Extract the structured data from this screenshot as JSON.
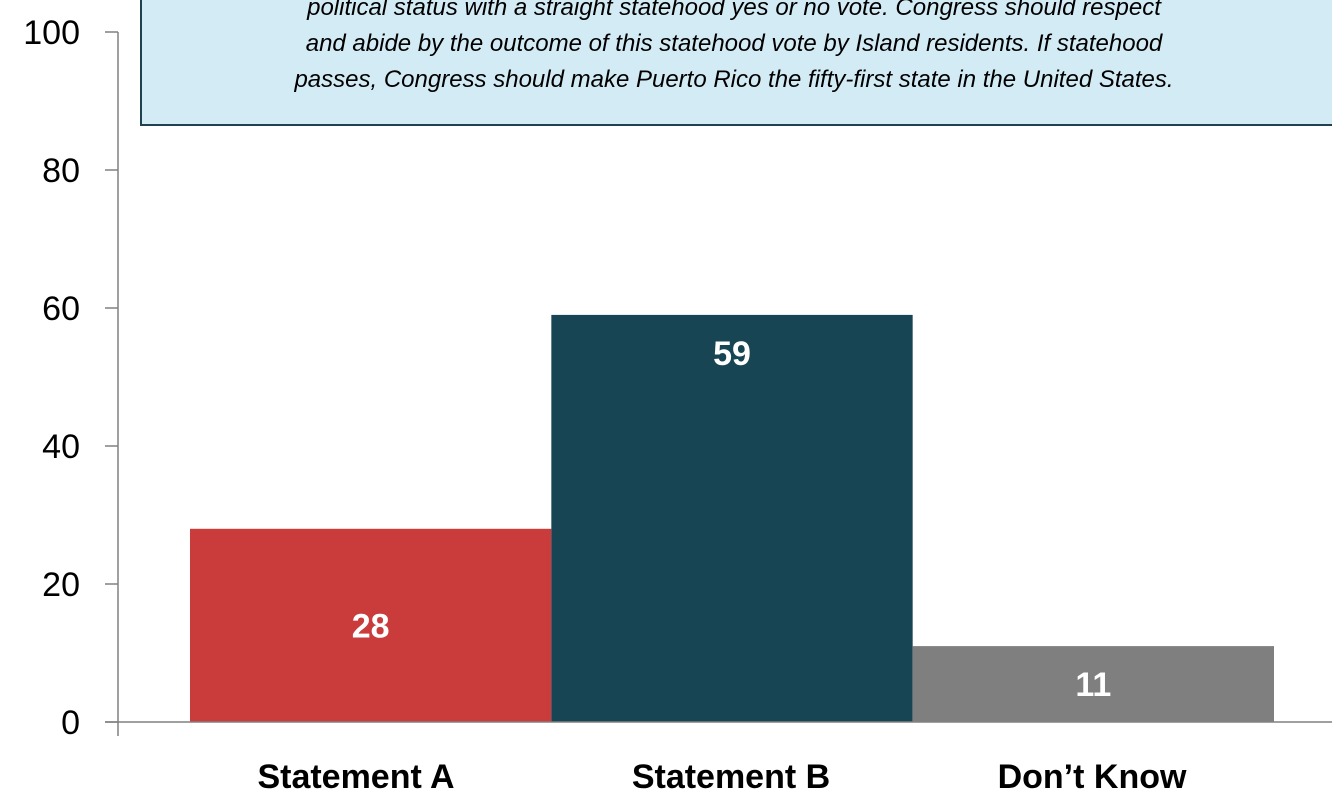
{
  "chart_data": {
    "type": "bar",
    "title": "",
    "xlabel": "",
    "ylabel": "",
    "categories": [
      "Statement A",
      "Statement B",
      "Don’t Know"
    ],
    "values": [
      28,
      59,
      11
    ],
    "value_labels": [
      "28",
      "59",
      "11"
    ],
    "ylim": [
      0,
      100
    ],
    "yticks": [
      0,
      20,
      40,
      60,
      80,
      100
    ],
    "ytick_labels": [
      "0",
      "20",
      "40",
      "60",
      "80",
      "100"
    ],
    "grid": false,
    "legend": "none",
    "bar_colors": [
      "#c93c3b",
      "#174554",
      "#7f7f7f"
    ],
    "annotation": {
      "lines": [
        "political status with a straight statehood yes or no vote. Congress should respect",
        "and abide by the outcome of this statehood vote by Island residents. If statehood",
        "passes, Congress should make Puerto Rico the fifty-first state in the United States."
      ],
      "background_color": "#d3ebf4",
      "border_color": "#1e4250"
    }
  }
}
